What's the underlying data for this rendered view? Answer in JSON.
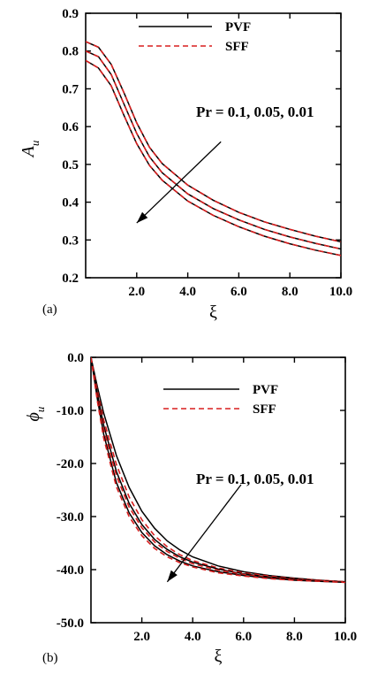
{
  "chart_data": [
    {
      "type": "line",
      "panel_label": "(a)",
      "xlabel": "ξ",
      "ylabel": "A",
      "ylabel_sub": "u",
      "xlim": [
        0,
        10
      ],
      "ylim": [
        0.2,
        0.9
      ],
      "xticks": [
        2,
        4,
        6,
        8,
        10
      ],
      "xtick_labels": [
        "2.0",
        "4.0",
        "6.0",
        "8.0",
        "10.0"
      ],
      "yticks": [
        0.2,
        0.3,
        0.4,
        0.5,
        0.6,
        0.7,
        0.8,
        0.9
      ],
      "ytick_labels": [
        "0.2",
        "0.3",
        "0.4",
        "0.5",
        "0.6",
        "0.7",
        "0.8",
        "0.9"
      ],
      "grid": false,
      "legend": {
        "placement": "top-center",
        "entries": [
          "PVF",
          "SFF"
        ]
      },
      "annotation": {
        "text": "Pr = 0.1, 0.05, 0.01",
        "arrow_from": [
          5.3,
          0.56
        ],
        "arrow_to": [
          2.0,
          0.345
        ]
      },
      "series": [
        {
          "name": "PVF",
          "group": "Pr = 0.1",
          "x": [
            0,
            0.5,
            1,
            1.5,
            2,
            2.5,
            3,
            4,
            5,
            6,
            7,
            8,
            9,
            10
          ],
          "y": [
            0.825,
            0.81,
            0.765,
            0.69,
            0.61,
            0.545,
            0.502,
            0.445,
            0.405,
            0.373,
            0.348,
            0.328,
            0.31,
            0.295
          ]
        },
        {
          "name": "SFF",
          "group": "Pr = 0.1",
          "x": [
            0,
            0.5,
            1,
            1.5,
            2,
            2.5,
            3,
            4,
            5,
            6,
            7,
            8,
            9,
            10
          ],
          "y": [
            0.825,
            0.81,
            0.765,
            0.69,
            0.61,
            0.545,
            0.502,
            0.445,
            0.405,
            0.373,
            0.348,
            0.328,
            0.31,
            0.295
          ]
        },
        {
          "name": "PVF",
          "group": "Pr = 0.05",
          "x": [
            0,
            0.5,
            1,
            1.5,
            2,
            2.5,
            3,
            4,
            5,
            6,
            7,
            8,
            9,
            10
          ],
          "y": [
            0.8,
            0.785,
            0.738,
            0.66,
            0.582,
            0.52,
            0.478,
            0.422,
            0.383,
            0.353,
            0.328,
            0.308,
            0.291,
            0.276
          ]
        },
        {
          "name": "SFF",
          "group": "Pr = 0.05",
          "x": [
            0,
            0.5,
            1,
            1.5,
            2,
            2.5,
            3,
            4,
            5,
            6,
            7,
            8,
            9,
            10
          ],
          "y": [
            0.8,
            0.785,
            0.738,
            0.66,
            0.582,
            0.52,
            0.478,
            0.422,
            0.383,
            0.353,
            0.328,
            0.308,
            0.291,
            0.276
          ]
        },
        {
          "name": "PVF",
          "group": "Pr = 0.01",
          "x": [
            0,
            0.5,
            1,
            1.5,
            2,
            2.5,
            3,
            4,
            5,
            6,
            7,
            8,
            9,
            10
          ],
          "y": [
            0.775,
            0.755,
            0.708,
            0.63,
            0.555,
            0.497,
            0.458,
            0.403,
            0.365,
            0.335,
            0.31,
            0.29,
            0.273,
            0.259
          ]
        },
        {
          "name": "SFF",
          "group": "Pr = 0.01",
          "x": [
            0,
            0.5,
            1,
            1.5,
            2,
            2.5,
            3,
            4,
            5,
            6,
            7,
            8,
            9,
            10
          ],
          "y": [
            0.775,
            0.755,
            0.708,
            0.63,
            0.555,
            0.497,
            0.458,
            0.403,
            0.365,
            0.335,
            0.31,
            0.29,
            0.273,
            0.259
          ]
        }
      ]
    },
    {
      "type": "line",
      "panel_label": "(b)",
      "xlabel": "ξ",
      "ylabel": "ϕ",
      "ylabel_sub": "u",
      "xlim": [
        0,
        10
      ],
      "ylim": [
        -50,
        0
      ],
      "xticks": [
        2,
        4,
        6,
        8,
        10
      ],
      "xtick_labels": [
        "2.0",
        "4.0",
        "6.0",
        "8.0",
        "10.0"
      ],
      "yticks": [
        0,
        -10,
        -20,
        -30,
        -40,
        -50
      ],
      "ytick_labels": [
        "0.0",
        "-10.0",
        "-20.0",
        "-30.0",
        "-40.0",
        "-50.0"
      ],
      "grid": false,
      "legend": {
        "placement": "top-center",
        "entries": [
          "PVF",
          "SFF"
        ]
      },
      "annotation": {
        "text": "Pr = 0.1, 0.05, 0.01",
        "arrow_from": [
          5.9,
          -24
        ],
        "arrow_to": [
          3.0,
          -42.3
        ]
      },
      "series": [
        {
          "name": "PVF",
          "group": "Pr = 0.1",
          "x": [
            0,
            0.25,
            0.5,
            1,
            1.5,
            2,
            2.5,
            3,
            3.5,
            4,
            5,
            6,
            7,
            8,
            9,
            10
          ],
          "y": [
            0,
            -5.5,
            -10.5,
            -18.5,
            -24.5,
            -29,
            -32.2,
            -34.6,
            -36.3,
            -37.6,
            -39.3,
            -40.4,
            -41.1,
            -41.6,
            -42,
            -42.3
          ]
        },
        {
          "name": "SFF",
          "group": "Pr = 0.1",
          "x": [
            0,
            0.25,
            0.5,
            1,
            1.5,
            2,
            2.5,
            3,
            3.5,
            4,
            5,
            6,
            7,
            8,
            9,
            10
          ],
          "y": [
            0,
            -6.2,
            -11.8,
            -20.2,
            -26.3,
            -30.6,
            -33.6,
            -35.7,
            -37.2,
            -38.3,
            -39.7,
            -40.6,
            -41.2,
            -41.7,
            -42,
            -42.3
          ]
        },
        {
          "name": "PVF",
          "group": "Pr = 0.05",
          "x": [
            0,
            0.25,
            0.5,
            1,
            1.5,
            2,
            2.5,
            3,
            3.5,
            4,
            5,
            6,
            7,
            8,
            9,
            10
          ],
          "y": [
            0,
            -6.8,
            -12.8,
            -21.5,
            -27.5,
            -31.5,
            -34.3,
            -36.2,
            -37.6,
            -38.6,
            -39.9,
            -40.8,
            -41.4,
            -41.8,
            -42.1,
            -42.3
          ]
        },
        {
          "name": "SFF",
          "group": "Pr = 0.05",
          "x": [
            0,
            0.25,
            0.5,
            1,
            1.5,
            2,
            2.5,
            3,
            3.5,
            4,
            5,
            6,
            7,
            8,
            9,
            10
          ],
          "y": [
            0,
            -7.2,
            -13.5,
            -22.3,
            -28.2,
            -32.1,
            -34.8,
            -36.6,
            -37.9,
            -38.9,
            -40.1,
            -40.9,
            -41.5,
            -41.9,
            -42.1,
            -42.3
          ]
        },
        {
          "name": "PVF",
          "group": "Pr = 0.01",
          "x": [
            0,
            0.25,
            0.5,
            1,
            1.5,
            2,
            2.5,
            3,
            3.5,
            4,
            5,
            6,
            7,
            8,
            9,
            10
          ],
          "y": [
            0,
            -7.8,
            -14.5,
            -23.6,
            -29.3,
            -33,
            -35.5,
            -37.2,
            -38.4,
            -39.3,
            -40.4,
            -41.1,
            -41.6,
            -42,
            -42.2,
            -42.4
          ]
        },
        {
          "name": "SFF",
          "group": "Pr = 0.01",
          "x": [
            0,
            0.25,
            0.5,
            1,
            1.5,
            2,
            2.5,
            3,
            3.5,
            4,
            5,
            6,
            7,
            8,
            9,
            10
          ],
          "y": [
            0,
            -8.2,
            -15.2,
            -24.4,
            -30,
            -33.6,
            -36,
            -37.6,
            -38.7,
            -39.5,
            -40.6,
            -41.2,
            -41.7,
            -42,
            -42.2,
            -42.4
          ]
        }
      ]
    }
  ]
}
